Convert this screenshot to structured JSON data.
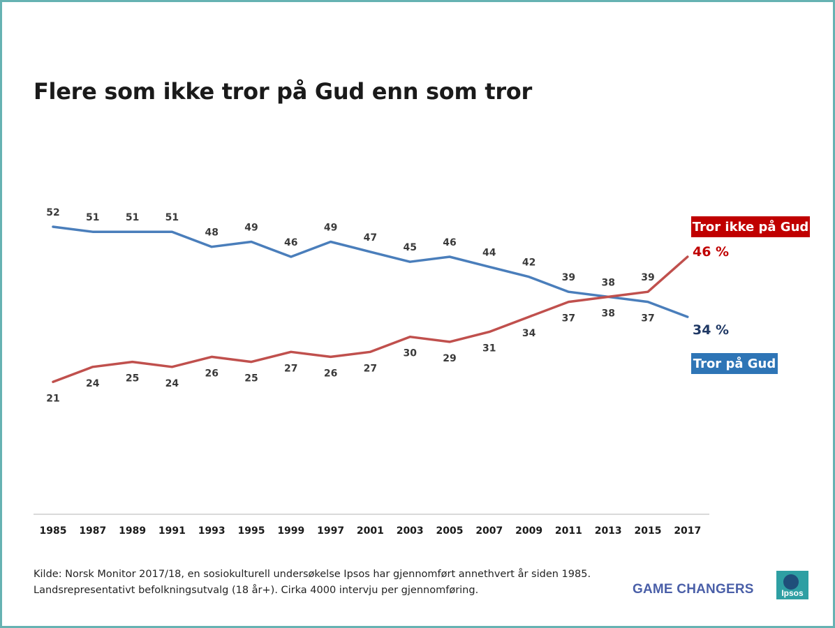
{
  "title": "Flere som ikke tror på Gud enn som tror",
  "source": {
    "line1": "Kilde: Norsk Monitor 2017/18, en sosiokulturell undersøkelse Ipsos har gjennomført annethvert år siden 1985.",
    "line2": "Landsrepresentativt befolkningsutvalg (18 år+). Cirka 4000 intervju per gjennomføring."
  },
  "branding": {
    "game_changers": "GAME CHANGERS",
    "logo_text": "Ipsos"
  },
  "chart_data": {
    "type": "line",
    "title": "Flere som ikke tror på Gud enn som tror",
    "categories": [
      "1985",
      "1987",
      "1989",
      "1991",
      "1993",
      "1995",
      "1999",
      "1997",
      "2001",
      "2003",
      "2005",
      "2007",
      "2009",
      "2011",
      "2013",
      "2015",
      "2017"
    ],
    "series": [
      {
        "name": "Tror på Gud",
        "color": "#4a7ebb",
        "values": [
          52,
          51,
          51,
          51,
          48,
          49,
          46,
          49,
          47,
          45,
          46,
          44,
          42,
          39,
          38,
          37,
          34
        ],
        "end_label": "34 %",
        "label_color": "#1f3864",
        "legend_bg": "#2e75b6"
      },
      {
        "name": "Tror ikke på Gud",
        "color": "#c0504d",
        "values": [
          21,
          24,
          25,
          24,
          26,
          25,
          27,
          26,
          27,
          30,
          29,
          31,
          34,
          37,
          38,
          39,
          46
        ],
        "end_label": "46 %",
        "label_color": "#c00000",
        "legend_bg": "#c00000"
      }
    ],
    "data_labels": true,
    "grid": false,
    "legend": "right"
  }
}
